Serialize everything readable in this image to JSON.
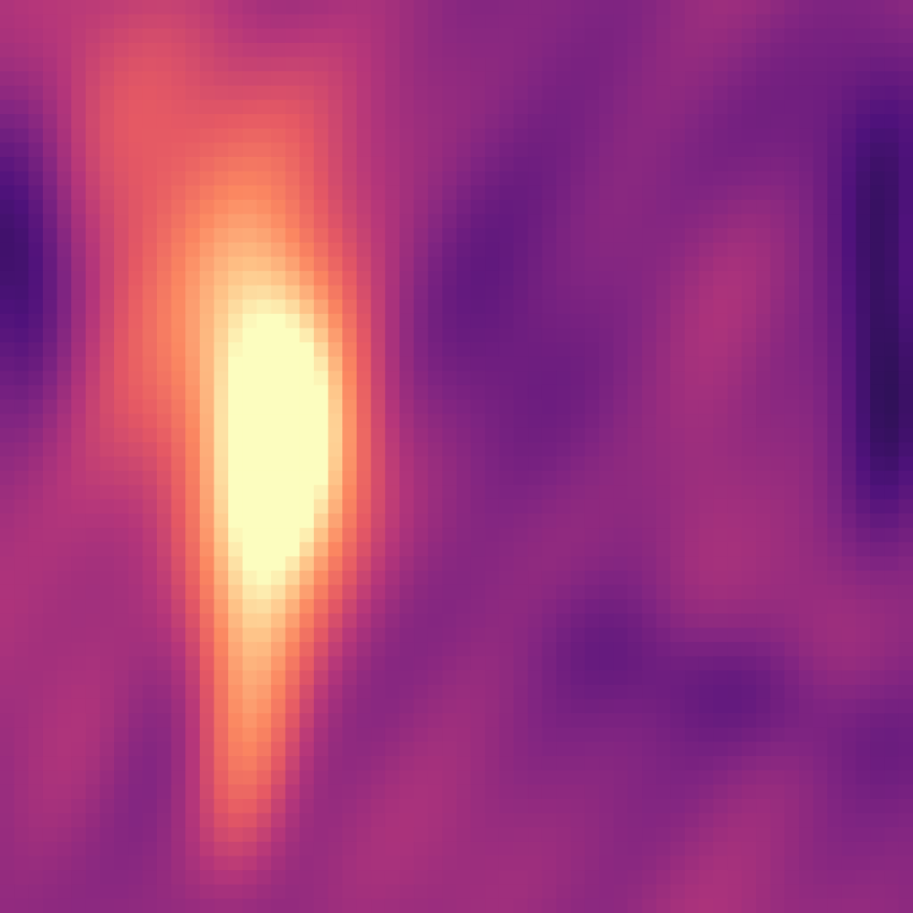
{
  "chart_data": {
    "type": "heatmap",
    "colormap": "magma",
    "grid": false,
    "legend": "none",
    "value_range": [
      0,
      1
    ],
    "field_resolution": [
      64,
      64
    ],
    "background_level": 0.42,
    "color_stops": [
      "#000004",
      "#1c1044",
      "#4f127b",
      "#812581",
      "#b5367a",
      "#e55964",
      "#fb8761",
      "#fec287",
      "#fcfdbf"
    ],
    "features": [
      {
        "name": "hot-plume-upper",
        "type": "hot",
        "cx": 0.25,
        "cy": 0.28,
        "rx": 0.12,
        "ry": 0.18,
        "amp": 0.24,
        "angle": -18
      },
      {
        "name": "hot-plume-core",
        "type": "hot",
        "cx": 0.31,
        "cy": 0.45,
        "rx": 0.055,
        "ry": 0.12,
        "amp": 0.4,
        "angle": -8
      },
      {
        "name": "hot-plume-mid",
        "type": "hot",
        "cx": 0.29,
        "cy": 0.6,
        "rx": 0.06,
        "ry": 0.12,
        "amp": 0.34,
        "angle": 8
      },
      {
        "name": "hot-plume-lower",
        "type": "hot",
        "cx": 0.27,
        "cy": 0.78,
        "rx": 0.04,
        "ry": 0.13,
        "amp": 0.26,
        "angle": 3
      },
      {
        "name": "warm-halo-left",
        "type": "hot",
        "cx": 0.18,
        "cy": 0.33,
        "rx": 0.15,
        "ry": 0.22,
        "amp": 0.09,
        "angle": 0
      },
      {
        "name": "warm-right-streak",
        "type": "hot",
        "cx": 0.78,
        "cy": 0.46,
        "rx": 0.045,
        "ry": 0.17,
        "amp": 0.09,
        "angle": 10
      },
      {
        "name": "warm-lower-left",
        "type": "hot",
        "cx": 0.05,
        "cy": 0.63,
        "rx": 0.09,
        "ry": 0.18,
        "amp": 0.07,
        "angle": 0
      },
      {
        "name": "cold-left-edge",
        "type": "cold",
        "cx": 0.02,
        "cy": 0.3,
        "rx": 0.05,
        "ry": 0.12,
        "amp": 0.34,
        "angle": 0
      },
      {
        "name": "cold-right-edge",
        "type": "cold",
        "cx": 0.97,
        "cy": 0.37,
        "rx": 0.04,
        "ry": 0.16,
        "amp": 0.28,
        "angle": 0
      },
      {
        "name": "cold-center-band",
        "type": "cold",
        "cx": 0.56,
        "cy": 0.42,
        "rx": 0.1,
        "ry": 0.2,
        "amp": 0.1,
        "angle": -18
      },
      {
        "name": "cold-upper-right-swirl",
        "type": "cold",
        "cx": 0.77,
        "cy": 0.18,
        "rx": 0.18,
        "ry": 0.08,
        "amp": 0.08,
        "angle": -10
      },
      {
        "name": "cold-lower-mid",
        "type": "cold",
        "cx": 0.18,
        "cy": 0.78,
        "rx": 0.05,
        "ry": 0.13,
        "amp": 0.12,
        "angle": 10
      },
      {
        "name": "cold-lower-right",
        "type": "cold",
        "cx": 0.82,
        "cy": 0.76,
        "rx": 0.16,
        "ry": 0.05,
        "amp": 0.1,
        "angle": 18
      }
    ]
  }
}
